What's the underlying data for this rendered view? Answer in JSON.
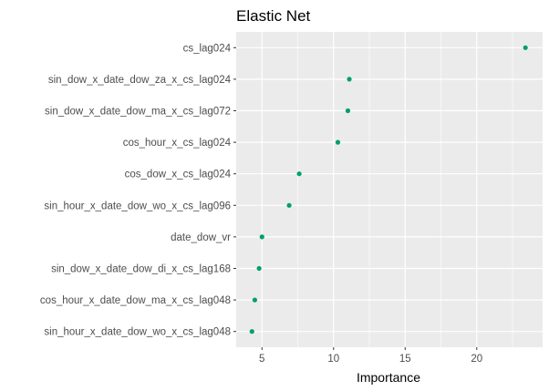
{
  "chart_data": {
    "type": "scatter",
    "title": "Elastic Net",
    "xlabel": "Importance",
    "ylabel": "",
    "xlim": [
      3.2,
      24.6
    ],
    "xticks": [
      5,
      10,
      15,
      20
    ],
    "grid": true,
    "point_color": "#009E73",
    "panel_color": "#EBEBEB",
    "categories": [
      "cs_lag024",
      "sin_dow_x_date_dow_za_x_cs_lag024",
      "sin_dow_x_date_dow_ma_x_cs_lag072",
      "cos_hour_x_cs_lag024",
      "cos_dow_x_cs_lag024",
      "sin_hour_x_date_dow_wo_x_cs_lag096",
      "date_dow_vr",
      "sin_dow_x_date_dow_di_x_cs_lag168",
      "cos_hour_x_date_dow_ma_x_cs_lag048",
      "sin_hour_x_date_dow_wo_x_cs_lag048"
    ],
    "values": [
      23.4,
      11.1,
      11.0,
      10.3,
      7.6,
      6.9,
      5.0,
      4.8,
      4.5,
      4.3
    ]
  }
}
